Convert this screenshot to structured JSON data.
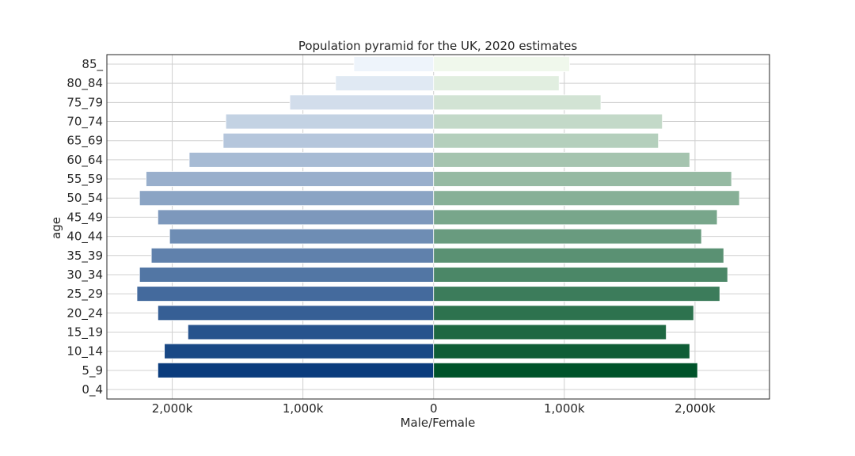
{
  "chart_data": {
    "type": "bar",
    "orientation": "horizontal-diverging",
    "title": "Population pyramid for the UK, 2020 estimates",
    "xlabel": "Male/Female",
    "ylabel": "age",
    "categories": [
      "0_4",
      "5_9",
      "10_14",
      "15_19",
      "20_24",
      "25_29",
      "30_34",
      "35_39",
      "40_44",
      "45_49",
      "50_54",
      "55_59",
      "60_64",
      "65_69",
      "70_74",
      "75_79",
      "80_84",
      "85_"
    ],
    "series": [
      {
        "name": "",
        "side": "left",
        "palette": "blues",
        "values": [
          0,
          2110,
          2060,
          1880,
          2110,
          2270,
          2250,
          2160,
          2020,
          2110,
          2250,
          2200,
          1870,
          1610,
          1590,
          1100,
          750,
          610
        ]
      },
      {
        "name": "",
        "side": "right",
        "palette": "greens",
        "values": [
          0,
          2020,
          1960,
          1780,
          1990,
          2190,
          2250,
          2220,
          2050,
          2170,
          2340,
          2280,
          1960,
          1720,
          1750,
          1280,
          960,
          1040
        ]
      }
    ],
    "xlim": [
      -2500,
      2570
    ],
    "xticks": [
      -2000,
      -1000,
      0,
      1000,
      2000
    ],
    "xtick_labels": [
      "2,000k",
      "1,000k",
      "0",
      "1,000k",
      "2,000k"
    ],
    "grid": true,
    "colors": {
      "male_dark": "#0b3c7d",
      "male_light": "#eef4fb",
      "female_dark": "#00532a",
      "female_light": "#f0f8ec"
    }
  }
}
